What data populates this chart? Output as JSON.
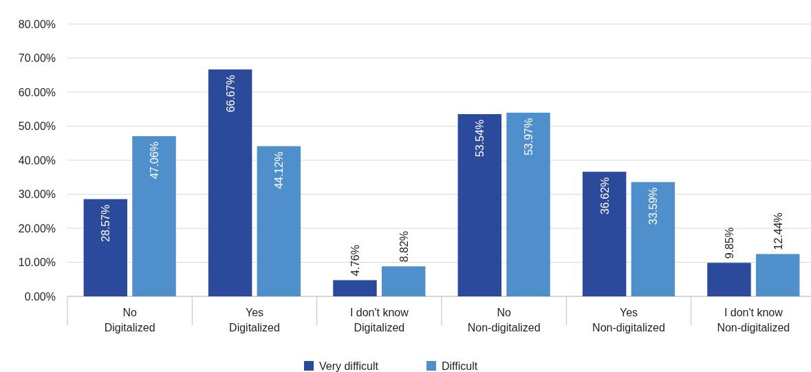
{
  "chart_data": {
    "type": "bar",
    "categories": [
      "No\nDigitalized",
      "Yes\nDigitalized",
      "I don't know\nDigitalized",
      "No\nNon-digitalized",
      "Yes\nNon-digitalized",
      "I don't know\nNon-digitalized"
    ],
    "series": [
      {
        "name": "Very difficult",
        "color": "#2b4a9b",
        "values": [
          28.57,
          66.67,
          4.76,
          53.54,
          36.62,
          9.85
        ],
        "value_labels": [
          "28.57%",
          "66.67%",
          "4.76%",
          "53.54%",
          "36.62%",
          "9.85%"
        ]
      },
      {
        "name": "Difficult",
        "color": "#4f8fcc",
        "values": [
          47.06,
          44.12,
          8.82,
          53.97,
          33.59,
          12.44
        ],
        "value_labels": [
          "47.06%",
          "44.12%",
          "8.82%",
          "53.97%",
          "33.59%",
          "12.44%"
        ]
      }
    ],
    "ylim": [
      0,
      80
    ],
    "yticks": [
      {
        "value": 0,
        "label": "0.00%"
      },
      {
        "value": 10,
        "label": "10.00%"
      },
      {
        "value": 20,
        "label": "20.00%"
      },
      {
        "value": 30,
        "label": "30.00%"
      },
      {
        "value": 40,
        "label": "40.00%"
      },
      {
        "value": 50,
        "label": "50.00%"
      },
      {
        "value": 60,
        "label": "60.00%"
      },
      {
        "value": 70,
        "label": "70.00%"
      },
      {
        "value": 80,
        "label": "80.00%"
      }
    ],
    "grid": "y",
    "legend": "bottom"
  }
}
